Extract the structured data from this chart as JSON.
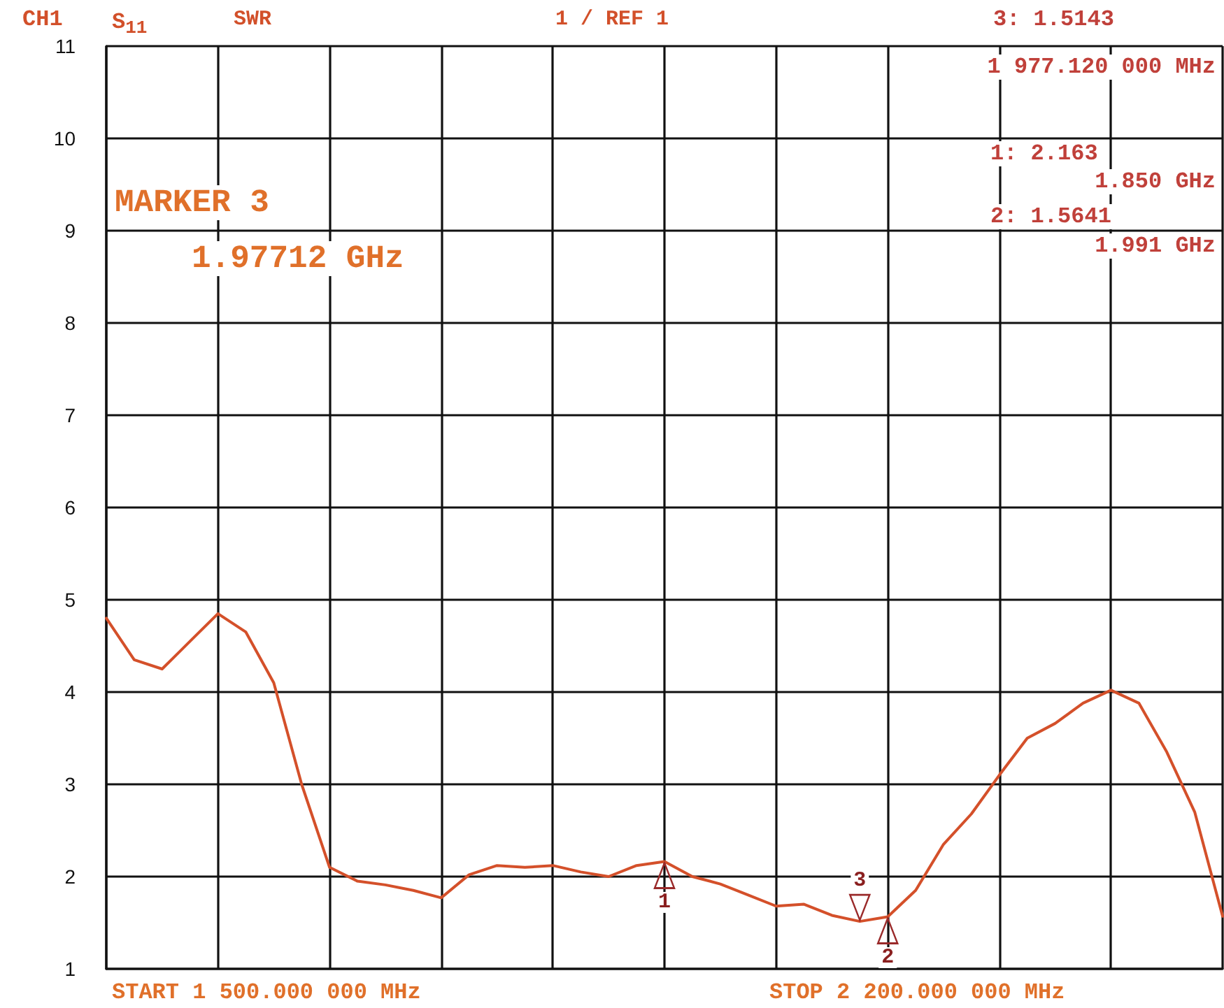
{
  "chart_data": {
    "type": "line",
    "categories": [
      null,
      null,
      null,
      null,
      null,
      null,
      null,
      null,
      null,
      null,
      null,
      null,
      null,
      null,
      null,
      null,
      null,
      null,
      null,
      null,
      null,
      null,
      null,
      null,
      null,
      null,
      null,
      null,
      null,
      null,
      null,
      null,
      null,
      null,
      null,
      null,
      null,
      null,
      null,
      null,
      null
    ],
    "series": [
      {
        "color": "#d4502a",
        "values": [
          4.8,
          4.35,
          4.25,
          4.55,
          4.85,
          4.65,
          4.1,
          3.0,
          2.1,
          1.95,
          1.91,
          1.85,
          1.77,
          2.02,
          2.12,
          2.1,
          2.12,
          2.05,
          2.0,
          2.12,
          2.163,
          2.0,
          1.92,
          1.8,
          1.68,
          1.7,
          1.58,
          1.5143,
          1.5641,
          1.85,
          2.35,
          2.68,
          3.1,
          3.5,
          3.66,
          3.88,
          4.02,
          3.88,
          3.35,
          2.7,
          1.57
        ]
      }
    ],
    "ylim": [
      1,
      11
    ],
    "yticks": [
      1,
      2,
      3,
      4,
      5,
      6,
      7,
      8,
      9,
      10,
      11
    ],
    "tick_labels": "y",
    "grid": true,
    "marker": "none",
    "line_style": "solid",
    "annotations": [
      "CH1",
      "S$_{11}$",
      "SWR",
      "1 / REF 1",
      "3: 1.5143",
      "1 977.120 000 MHz",
      "1: 2.163",
      "1.850 GHz",
      "2: 1.5641",
      "1.991 GHz",
      "MARKER 3",
      "1.97712 GHz",
      "START 1 500.000 000 MHz",
      "STOP 2 200.000 000 MHz",
      {
        "text": "1",
        "y": 2.163
      },
      {
        "text": "2",
        "y": 1.5641
      },
      {
        "text": "3",
        "y": 1.5143
      }
    ]
  }
}
